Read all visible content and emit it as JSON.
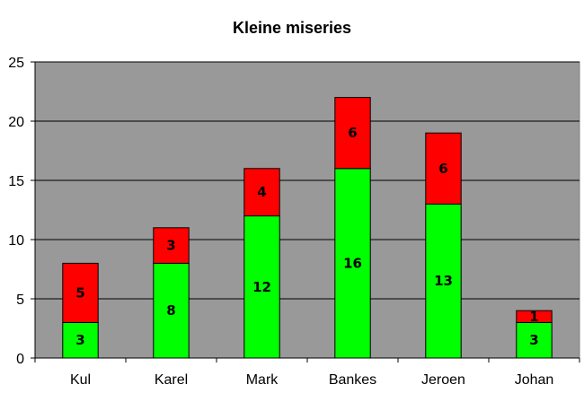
{
  "chart_data": {
    "type": "bar",
    "stacked": true,
    "title": "Kleine miseries",
    "xlabel": "",
    "ylabel": "",
    "categories": [
      "Kul",
      "Karel",
      "Mark",
      "Bankes",
      "Jeroen",
      "Johan"
    ],
    "series": [
      {
        "values": [
          3,
          8,
          12,
          16,
          13,
          3
        ],
        "color": "#00ff00"
      },
      {
        "values": [
          5,
          3,
          4,
          6,
          6,
          1
        ],
        "color": "#ff0000"
      }
    ],
    "ylim": [
      0,
      25
    ],
    "yticks": [
      "0",
      "5",
      "10",
      "15",
      "20",
      "25"
    ],
    "grid": true,
    "legend": "none",
    "plot_background": "#999999"
  }
}
